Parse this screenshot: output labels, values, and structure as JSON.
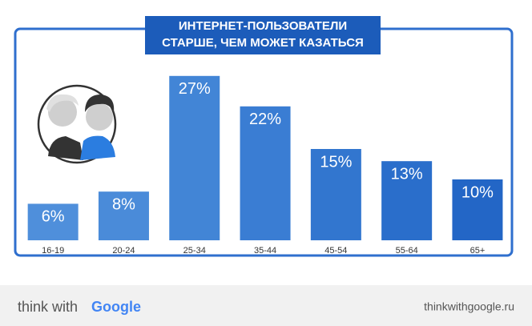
{
  "chart_data": {
    "type": "bar",
    "title": [
      "ИНТЕРНЕТ-ПОЛЬЗОВАТЕЛИ",
      "СТАРШЕ, ЧЕМ МОЖЕТ КАЗАТЬСЯ"
    ],
    "categories": [
      "16-19",
      "20-24",
      "25-34",
      "35-44",
      "45-54",
      "55-64",
      "65+"
    ],
    "values": [
      6,
      8,
      27,
      22,
      15,
      13,
      10
    ],
    "value_labels": [
      "6%",
      "8%",
      "27%",
      "22%",
      "15%",
      "13%",
      "10%"
    ],
    "colors": [
      "#4f8fdb",
      "#4a8bd9",
      "#4285d6",
      "#3a7dd3",
      "#3276cf",
      "#2a6ecb",
      "#2366c6"
    ]
  },
  "footer": {
    "brand": "think with",
    "brand_name": "Google",
    "url": "thinkwithgoogle.ru"
  }
}
